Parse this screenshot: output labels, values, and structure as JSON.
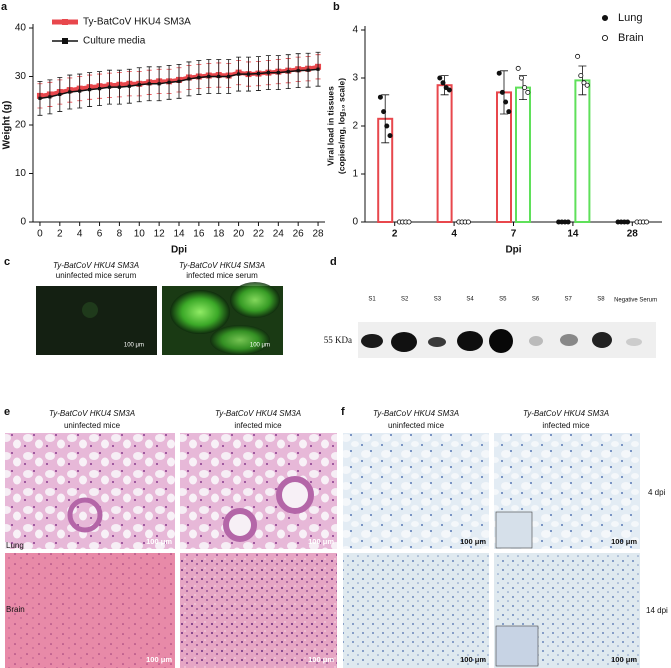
{
  "chart_data": [
    {
      "type": "line",
      "panel": "a",
      "xlabel": "Dpi",
      "ylabel": "Weight (g)",
      "x": [
        0,
        1,
        2,
        3,
        4,
        5,
        6,
        7,
        8,
        9,
        10,
        11,
        12,
        13,
        14,
        15,
        16,
        17,
        18,
        19,
        20,
        21,
        22,
        23,
        24,
        25,
        26,
        27,
        28
      ],
      "xlim": [
        -0.7,
        28.7
      ],
      "xticks": [
        0,
        2,
        4,
        6,
        8,
        10,
        12,
        14,
        16,
        18,
        20,
        22,
        24,
        26,
        28
      ],
      "ylim": [
        0,
        40
      ],
      "yticks": [
        0,
        10,
        20,
        30,
        40
      ],
      "legend": "upper-left",
      "series": [
        {
          "name": "Ty-BatCoV HKU4 SM3A",
          "color": "#e8474c",
          "values": [
            26,
            26.3,
            26.8,
            27.2,
            27.5,
            27.8,
            28,
            28.2,
            28.3,
            28.5,
            28.5,
            28.8,
            29,
            29,
            29.3,
            29.8,
            30,
            30.2,
            30.3,
            30.2,
            30.8,
            30.5,
            30.6,
            30.8,
            31,
            31.2,
            31.5,
            31.6,
            32
          ],
          "errors": [
            2.5,
            2.5,
            2.5,
            2.5,
            2.5,
            2.5,
            2.5,
            2.5,
            2.5,
            2.5,
            2.5,
            2.5,
            2.5,
            2.5,
            2.5,
            2.5,
            2.5,
            2.5,
            2.5,
            2.5,
            2.5,
            2.5,
            2.5,
            2.5,
            2.5,
            2.5,
            2.5,
            2.5,
            2.5
          ]
        },
        {
          "name": "Culture media",
          "color": "#111111",
          "values": [
            25.5,
            25.8,
            26.3,
            26.8,
            27,
            27.3,
            27.5,
            27.8,
            27.8,
            28,
            28.3,
            28.5,
            28.5,
            28.8,
            29,
            29.5,
            29.8,
            30,
            30,
            30,
            30.5,
            30.5,
            30.6,
            30.8,
            30.8,
            31,
            31.2,
            31.3,
            31.5
          ],
          "errors": [
            3.5,
            3.5,
            3.5,
            3.5,
            3.5,
            3.5,
            3.5,
            3.5,
            3.5,
            3.5,
            3.5,
            3.5,
            3.5,
            3.5,
            3.5,
            3.5,
            3.5,
            3.5,
            3.5,
            3.5,
            3.5,
            3.5,
            3.5,
            3.5,
            3.5,
            3.5,
            3.5,
            3.5,
            3.5
          ]
        }
      ]
    },
    {
      "type": "bar",
      "panel": "b",
      "xlabel": "Dpi",
      "ylabel": [
        "Viral load in tissues",
        "(copies/mg, log₁₀ scale)"
      ],
      "categories": [
        "2",
        "4",
        "7",
        "14",
        "28"
      ],
      "ylim": [
        0,
        4
      ],
      "yticks": [
        0,
        1,
        2,
        3,
        4
      ],
      "legend": "upper-right",
      "series": [
        {
          "name": "Lung",
          "color": "#e8474c",
          "marker": "filled",
          "values": [
            2.15,
            2.85,
            2.7,
            0,
            0
          ],
          "errors": [
            0.5,
            0.2,
            0.45,
            0,
            0
          ],
          "points": [
            [
              2.6,
              2.3,
              2.0,
              1.8
            ],
            [
              3.0,
              2.9,
              2.8,
              2.75
            ],
            [
              3.1,
              2.7,
              2.5,
              2.3
            ],
            [
              0,
              0,
              0,
              0
            ],
            [
              0,
              0,
              0,
              0
            ]
          ]
        },
        {
          "name": "Brain",
          "color": "#5fe05a",
          "marker": "open",
          "values": [
            0,
            0,
            2.8,
            2.95,
            0
          ],
          "errors": [
            0,
            0,
            0.25,
            0.3,
            0
          ],
          "points": [
            [
              0,
              0,
              0,
              0
            ],
            [
              0,
              0,
              0,
              0
            ],
            [
              3.2,
              3.0,
              2.8,
              2.7
            ],
            [
              3.45,
              3.05,
              2.9,
              2.85
            ],
            [
              0,
              0,
              0,
              0
            ]
          ]
        }
      ]
    }
  ],
  "panels": {
    "c": {
      "label": "c",
      "headers": [
        [
          "Ty-BatCoV HKU4 SM3A",
          "uninfected mice serum"
        ],
        [
          "Ty-BatCoV HKU4 SM3A",
          "infected mice serum"
        ]
      ],
      "scale": [
        "100 μm",
        "100 μm"
      ]
    },
    "d": {
      "label": "d",
      "lanes": [
        "S1",
        "S2",
        "S3",
        "S4",
        "S5",
        "S6",
        "S7",
        "S8",
        "Negative Serum"
      ],
      "marker": "55 KDa"
    },
    "e": {
      "label": "e",
      "headers": [
        [
          "Ty-BatCoV HKU4 SM3A",
          "uninfected mice"
        ],
        [
          "Ty-BatCoV HKU4 SM3A",
          "infected mice"
        ]
      ],
      "rows": [
        "Lung",
        "Brain"
      ],
      "scale": [
        "100 μm",
        "100 μm",
        "100 μm",
        "100 μm"
      ]
    },
    "f": {
      "label": "f",
      "headers": [
        [
          "Ty-BatCoV HKU4 SM3A",
          "uninfected mice"
        ],
        [
          "Ty-BatCoV HKU4 SM3A",
          "infected mice"
        ]
      ],
      "rows": [
        "4 dpi",
        "14 dpi"
      ],
      "scale": [
        "100 μm",
        "100 μm",
        "100 μm",
        "100 μm"
      ]
    }
  }
}
